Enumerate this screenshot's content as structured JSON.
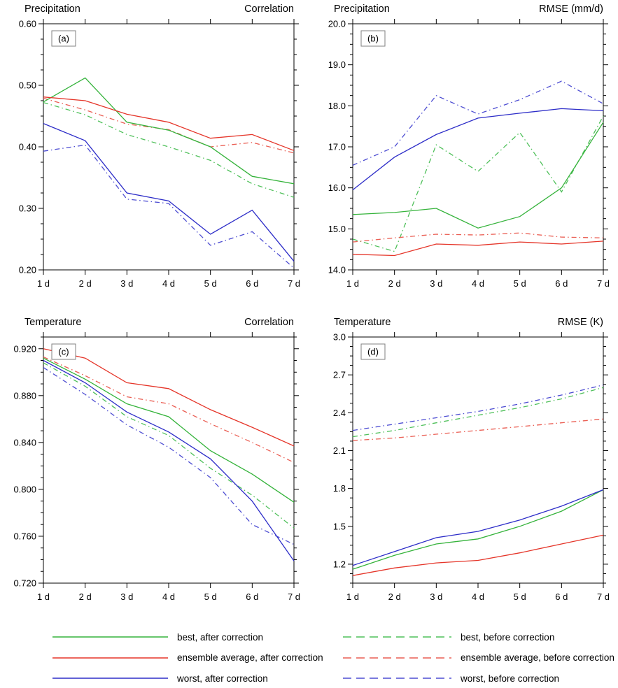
{
  "figure": {
    "background": "#ffffff"
  },
  "x_categories": [
    "1 d",
    "2 d",
    "3 d",
    "4 d",
    "5 d",
    "6 d",
    "7 d"
  ],
  "colors": {
    "after_green": "#35b33b",
    "after_red": "#e53529",
    "after_blue": "#2d2dc8",
    "before_green": "#4fc05a",
    "before_red": "#ea5e53",
    "before_blue": "#4d4dd2",
    "axis": "#000000",
    "panel_label_border": "#808080"
  },
  "chart_data": [
    {
      "id": "a",
      "type": "line",
      "panel_label": "(a)",
      "title_left": "Precipitation",
      "title_right": "Correlation",
      "x": [
        "1 d",
        "2 d",
        "3 d",
        "4 d",
        "5 d",
        "6 d",
        "7 d"
      ],
      "ylim": [
        0.2,
        0.6
      ],
      "yticks": [
        0.2,
        0.3,
        0.4,
        0.5,
        0.6
      ],
      "ytick_decimals": 2,
      "grid": false,
      "legend_position": "bottom",
      "series": [
        {
          "id": "best-before",
          "name": "best, before correction",
          "color": "#4fc05a",
          "line_style": "dashdot",
          "values": [
            0.472,
            0.452,
            0.42,
            0.4,
            0.378,
            0.34,
            0.318
          ]
        },
        {
          "id": "ensemble-average-before",
          "name": "ensemble average, before correction",
          "color": "#ea5e53",
          "line_style": "dashdot",
          "values": [
            0.479,
            0.46,
            0.437,
            0.428,
            0.4,
            0.407,
            0.39
          ]
        },
        {
          "id": "worst-before",
          "name": "worst, before correction",
          "color": "#4d4dd2",
          "line_style": "dashdot",
          "values": [
            0.393,
            0.403,
            0.315,
            0.308,
            0.24,
            0.262,
            0.203
          ]
        },
        {
          "id": "best-after",
          "name": "best, after correction",
          "color": "#35b33b",
          "line_style": "solid",
          "values": [
            0.473,
            0.512,
            0.44,
            0.427,
            0.4,
            0.352,
            0.34
          ]
        },
        {
          "id": "ensemble-average-after",
          "name": "ensemble average, after correction",
          "color": "#e53529",
          "line_style": "solid",
          "values": [
            0.481,
            0.475,
            0.453,
            0.44,
            0.414,
            0.42,
            0.394
          ]
        },
        {
          "id": "worst-after",
          "name": "worst, after correction",
          "color": "#2d2dc8",
          "line_style": "solid",
          "values": [
            0.438,
            0.41,
            0.325,
            0.312,
            0.258,
            0.297,
            0.214
          ]
        }
      ]
    },
    {
      "id": "b",
      "type": "line",
      "panel_label": "(b)",
      "title_left": "Precipitation",
      "title_right": "RMSE (mm/d)",
      "x": [
        "1 d",
        "2 d",
        "3 d",
        "4 d",
        "5 d",
        "6 d",
        "7 d"
      ],
      "ylim": [
        14.0,
        20.0
      ],
      "yticks": [
        14.0,
        15.0,
        16.0,
        17.0,
        18.0,
        19.0,
        20.0
      ],
      "ytick_decimals": 1,
      "grid": false,
      "legend_position": "bottom",
      "series": [
        {
          "id": "best-before",
          "name": "best, before correction",
          "color": "#4fc05a",
          "line_style": "dashdot",
          "values": [
            14.75,
            14.45,
            17.05,
            16.4,
            17.35,
            15.9,
            17.75
          ]
        },
        {
          "id": "ensemble-average-before",
          "name": "ensemble average, before correction",
          "color": "#ea5e53",
          "line_style": "dashdot",
          "values": [
            14.68,
            14.78,
            14.87,
            14.85,
            14.9,
            14.8,
            14.78
          ]
        },
        {
          "id": "worst-before",
          "name": "worst, before correction",
          "color": "#4d4dd2",
          "line_style": "dashdot",
          "values": [
            16.55,
            17.0,
            18.25,
            17.8,
            18.15,
            18.6,
            18.05
          ]
        },
        {
          "id": "best-after",
          "name": "best, after correction",
          "color": "#35b33b",
          "line_style": "solid",
          "values": [
            15.35,
            15.4,
            15.5,
            15.02,
            15.3,
            16.0,
            17.6
          ]
        },
        {
          "id": "ensemble-average-after",
          "name": "ensemble average, after correction",
          "color": "#e53529",
          "line_style": "solid",
          "values": [
            14.38,
            14.35,
            14.63,
            14.6,
            14.68,
            14.63,
            14.7
          ]
        },
        {
          "id": "worst-after",
          "name": "worst, after correction",
          "color": "#2d2dc8",
          "line_style": "solid",
          "values": [
            15.95,
            16.75,
            17.3,
            17.7,
            17.82,
            17.93,
            17.88
          ]
        }
      ]
    },
    {
      "id": "c",
      "type": "line",
      "panel_label": "(c)",
      "title_left": "Temperature",
      "title_right": "Correlation",
      "x": [
        "1 d",
        "2 d",
        "3 d",
        "4 d",
        "5 d",
        "6 d",
        "7 d"
      ],
      "ylim": [
        0.72,
        0.93
      ],
      "yticks": [
        0.72,
        0.76,
        0.8,
        0.84,
        0.88,
        0.92
      ],
      "ytick_decimals": 3,
      "grid": false,
      "legend_position": "bottom",
      "series": [
        {
          "id": "best-before",
          "name": "best, before correction",
          "color": "#4fc05a",
          "line_style": "dashdot",
          "values": [
            0.908,
            0.888,
            0.862,
            0.846,
            0.818,
            0.795,
            0.767
          ]
        },
        {
          "id": "ensemble-average-before",
          "name": "ensemble average, before correction",
          "color": "#ea5e53",
          "line_style": "dashdot",
          "values": [
            0.913,
            0.897,
            0.879,
            0.873,
            0.856,
            0.84,
            0.823
          ]
        },
        {
          "id": "worst-before",
          "name": "worst, before correction",
          "color": "#4d4dd2",
          "line_style": "dashdot",
          "values": [
            0.904,
            0.881,
            0.855,
            0.836,
            0.81,
            0.77,
            0.753
          ]
        },
        {
          "id": "best-after",
          "name": "best, after correction",
          "color": "#35b33b",
          "line_style": "solid",
          "values": [
            0.912,
            0.894,
            0.873,
            0.862,
            0.833,
            0.813,
            0.789
          ]
        },
        {
          "id": "ensemble-average-after",
          "name": "ensemble average, after correction",
          "color": "#e53529",
          "line_style": "solid",
          "values": [
            0.92,
            0.912,
            0.891,
            0.886,
            0.868,
            0.853,
            0.837
          ]
        },
        {
          "id": "worst-after",
          "name": "worst, after correction",
          "color": "#2d2dc8",
          "line_style": "solid",
          "values": [
            0.91,
            0.891,
            0.866,
            0.849,
            0.826,
            0.79,
            0.739
          ]
        }
      ]
    },
    {
      "id": "d",
      "type": "line",
      "panel_label": "(d)",
      "title_left": "Temperature",
      "title_right": "RMSE (K)",
      "x": [
        "1 d",
        "2 d",
        "3 d",
        "4 d",
        "5 d",
        "6 d",
        "7 d"
      ],
      "ylim": [
        1.05,
        3.0
      ],
      "yticks": [
        1.2,
        1.5,
        1.8,
        2.1,
        2.4,
        2.7,
        3.0
      ],
      "ytick_decimals": 1,
      "grid": false,
      "legend_position": "bottom",
      "series": [
        {
          "id": "best-before",
          "name": "best, before correction",
          "color": "#4fc05a",
          "line_style": "dashdot",
          "values": [
            2.21,
            2.26,
            2.32,
            2.38,
            2.44,
            2.51,
            2.6
          ]
        },
        {
          "id": "ensemble-average-before",
          "name": "ensemble average, before correction",
          "color": "#ea5e53",
          "line_style": "dashdot",
          "values": [
            2.18,
            2.2,
            2.23,
            2.26,
            2.29,
            2.32,
            2.35
          ]
        },
        {
          "id": "worst-before",
          "name": "worst, before correction",
          "color": "#4d4dd2",
          "line_style": "dashdot",
          "values": [
            2.26,
            2.31,
            2.36,
            2.41,
            2.47,
            2.54,
            2.62
          ]
        },
        {
          "id": "best-after",
          "name": "best, after correction",
          "color": "#35b33b",
          "line_style": "solid",
          "values": [
            1.16,
            1.27,
            1.36,
            1.4,
            1.5,
            1.62,
            1.79
          ]
        },
        {
          "id": "ensemble-average-after",
          "name": "ensemble average, after correction",
          "color": "#e53529",
          "line_style": "solid",
          "values": [
            1.11,
            1.17,
            1.21,
            1.23,
            1.29,
            1.36,
            1.43
          ]
        },
        {
          "id": "worst-after",
          "name": "worst, after correction",
          "color": "#2d2dc8",
          "line_style": "solid",
          "values": [
            1.19,
            1.3,
            1.41,
            1.46,
            1.55,
            1.66,
            1.79
          ]
        }
      ]
    }
  ],
  "legend": {
    "columns": [
      [
        {
          "id": "best-after",
          "label": "best, after correction",
          "color": "#35b33b",
          "dash": "solid"
        },
        {
          "id": "ensemble-average-after",
          "label": "ensemble average, after correction",
          "color": "#e53529",
          "dash": "solid"
        },
        {
          "id": "worst-after",
          "label": "worst, after correction",
          "color": "#2d2dc8",
          "dash": "solid"
        }
      ],
      [
        {
          "id": "best-before",
          "label": "best, before correction",
          "color": "#4fc05a",
          "dash": "dashed"
        },
        {
          "id": "ensemble-average-before",
          "label": "ensemble average, before correction",
          "color": "#ea5e53",
          "dash": "dashed"
        },
        {
          "id": "worst-before",
          "label": "worst, before correction",
          "color": "#4d4dd2",
          "dash": "dashed"
        }
      ]
    ]
  }
}
